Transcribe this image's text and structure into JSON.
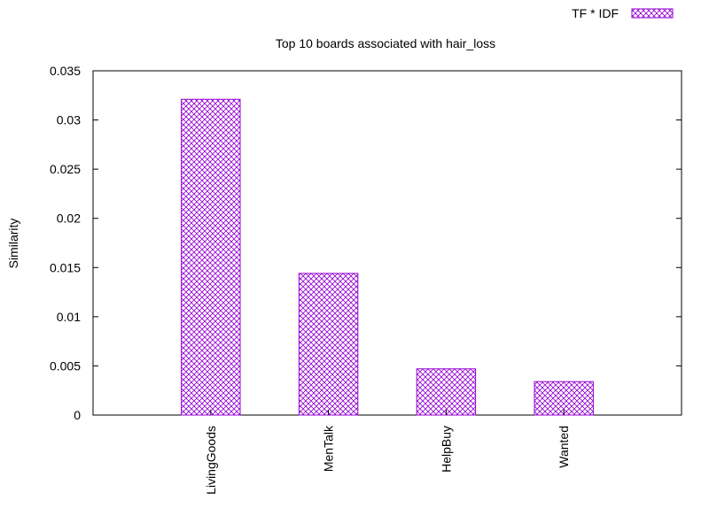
{
  "chart_data": {
    "type": "bar",
    "title": "Top 10 boards associated with hair_loss",
    "xlabel": "",
    "ylabel": "Similarity",
    "categories": [
      "LivingGoods",
      "MenTalk",
      "HelpBuy",
      "Wanted"
    ],
    "series": [
      {
        "name": "TF * IDF",
        "values": [
          0.0321,
          0.0144,
          0.0047,
          0.0034
        ]
      }
    ],
    "ylim": [
      0,
      0.035
    ],
    "yticks": [
      "0",
      "0.005",
      "0.01",
      "0.015",
      "0.02",
      "0.025",
      "0.03",
      "0.035"
    ],
    "grid": false,
    "legend_position": "top-right",
    "bar_color": "#9400d3",
    "bar_pattern": "crosshatch"
  }
}
